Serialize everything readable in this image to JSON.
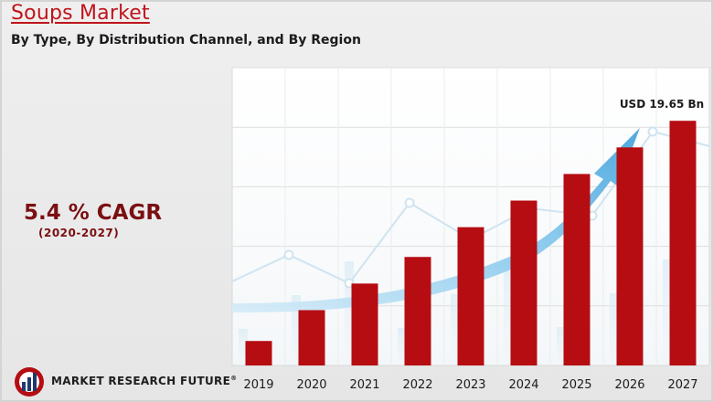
{
  "title": "Soups Market",
  "subtitle": "By Type, By Distribution Channel, and By Region",
  "cagr": {
    "value": "5.4 % CAGR",
    "period": "(2020-2027)"
  },
  "brand": {
    "name": "MARKET RESEARCH FUTURE",
    "mark": "®"
  },
  "colors": {
    "bar": "#b50d12",
    "title": "#c0141b",
    "cagr": "#7a0f12",
    "arrow": "#5ab0e0"
  },
  "chart_data": {
    "type": "bar",
    "categories": [
      "2019",
      "2020",
      "2021",
      "2022",
      "2023",
      "2024",
      "2025",
      "2026",
      "2027"
    ],
    "values": [
      2.3,
      5.2,
      7.7,
      10.2,
      13.0,
      15.5,
      18.0,
      20.5,
      23.0
    ],
    "annotation": {
      "text": "USD 19.65 Bn",
      "category": "2027"
    },
    "ylim": [
      0,
      28
    ],
    "grid": true
  }
}
